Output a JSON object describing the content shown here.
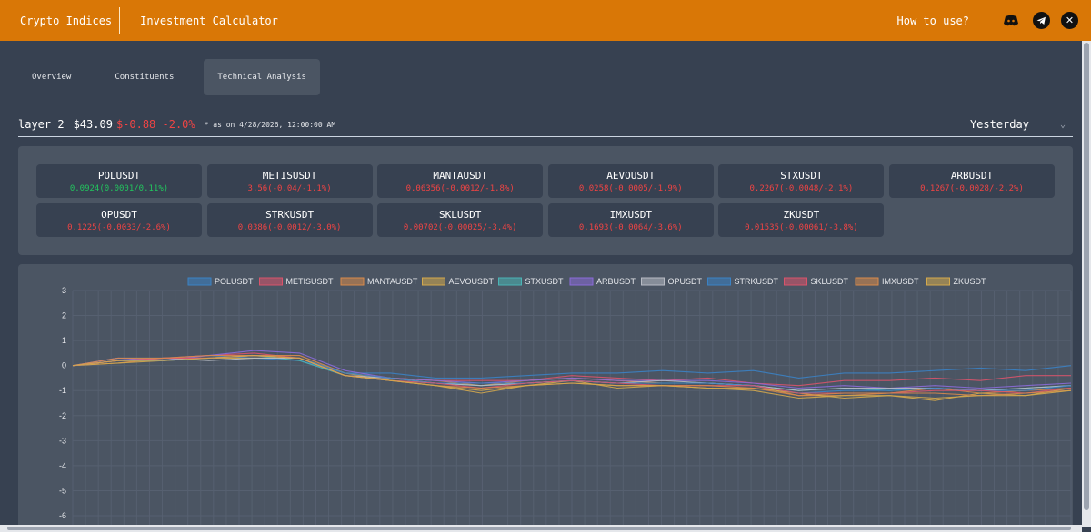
{
  "nav": {
    "brand": "Crypto Indices",
    "calculator": "Investment Calculator",
    "how_to": "How to use?",
    "icons": [
      "discord-icon",
      "telegram-icon",
      "x-icon"
    ]
  },
  "tabs": [
    {
      "label": "Overview",
      "active": false
    },
    {
      "label": "Constituents",
      "active": false
    },
    {
      "label": "Technical Analysis",
      "active": true
    }
  ],
  "index": {
    "name": "layer 2",
    "price": "$43.09",
    "change": "$-0.88 -2.0%",
    "as_of": "* as on 4/28/2026, 12:00:00 AM",
    "period": "Yesterday"
  },
  "colors": {
    "header": "#d97706",
    "positive": "#22c55e",
    "negative": "#ef4444"
  },
  "cards": [
    {
      "symbol": "POLUSDT",
      "change": "0.0924(0.0001/0.11%)",
      "positive": true
    },
    {
      "symbol": "METISUSDT",
      "change": "3.56(-0.04/-1.1%)",
      "positive": false
    },
    {
      "symbol": "MANTAUSDT",
      "change": "0.06356(-0.0012/-1.8%)",
      "positive": false
    },
    {
      "symbol": "AEVOUSDT",
      "change": "0.0258(-0.0005/-1.9%)",
      "positive": false
    },
    {
      "symbol": "STXUSDT",
      "change": "0.2267(-0.0048/-2.1%)",
      "positive": false
    },
    {
      "symbol": "ARBUSDT",
      "change": "0.1267(-0.0028/-2.2%)",
      "positive": false
    },
    {
      "symbol": "OPUSDT",
      "change": "0.1225(-0.0033/-2.6%)",
      "positive": false
    },
    {
      "symbol": "STRKUSDT",
      "change": "0.0386(-0.0012/-3.0%)",
      "positive": false
    },
    {
      "symbol": "SKLUSDT",
      "change": "0.00702(-0.00025/-3.4%)",
      "positive": false
    },
    {
      "symbol": "IMXUSDT",
      "change": "0.1693(-0.0064/-3.6%)",
      "positive": false
    },
    {
      "symbol": "ZKUSDT",
      "change": "0.01535(-0.00061/-3.8%)",
      "positive": false
    }
  ],
  "chart_data": {
    "type": "line",
    "ylim": [
      -6,
      3
    ],
    "yticks": [
      "3",
      "2",
      "1",
      "0",
      "-1",
      "-2",
      "-3",
      "-4",
      "-5",
      "-6"
    ],
    "grid": true,
    "legend_position": "top",
    "series": [
      {
        "name": "POLUSDT",
        "color": "#3b82c4",
        "values": [
          0,
          0.3,
          0.3,
          0.4,
          0.3,
          0.2,
          -0.3,
          -0.3,
          -0.5,
          -0.5,
          -0.4,
          -0.3,
          -0.3,
          -0.2,
          -0.3,
          -0.2,
          -0.5,
          -0.3,
          -0.3,
          -0.2,
          -0.1,
          -0.2,
          0
        ]
      },
      {
        "name": "METISUSDT",
        "color": "#d9546b",
        "values": [
          0,
          0.2,
          0.3,
          0.4,
          0.5,
          0.3,
          -0.4,
          -0.5,
          -0.6,
          -0.6,
          -0.6,
          -0.4,
          -0.5,
          -0.6,
          -0.5,
          -0.7,
          -0.8,
          -0.6,
          -0.6,
          -0.5,
          -0.6,
          -0.4,
          -0.4
        ]
      },
      {
        "name": "MANTAUSDT",
        "color": "#d98a4b",
        "values": [
          0,
          0.1,
          0.3,
          0.3,
          0.4,
          0.4,
          -0.3,
          -0.5,
          -0.6,
          -0.8,
          -0.6,
          -0.5,
          -0.6,
          -0.7,
          -0.7,
          -0.8,
          -1.2,
          -1.2,
          -1.1,
          -0.9,
          -1.1,
          -1.0,
          -0.9
        ]
      },
      {
        "name": "AEVOUSDT",
        "color": "#d4a94c",
        "values": [
          0,
          0.1,
          0.2,
          0.3,
          0.3,
          0.3,
          -0.3,
          -0.6,
          -0.8,
          -1.1,
          -0.8,
          -0.6,
          -0.9,
          -0.8,
          -0.9,
          -0.9,
          -1.1,
          -1.3,
          -1.2,
          -1.4,
          -1.1,
          -1.2,
          -0.9
        ]
      },
      {
        "name": "STXUSDT",
        "color": "#4bb4b5",
        "values": [
          0,
          0.2,
          0.2,
          0.3,
          0.4,
          0.2,
          -0.4,
          -0.6,
          -0.7,
          -0.8,
          -0.7,
          -0.6,
          -0.7,
          -0.7,
          -0.7,
          -0.8,
          -1.0,
          -0.9,
          -1.0,
          -0.9,
          -1.0,
          -0.9,
          -0.8
        ]
      },
      {
        "name": "ARBUSDT",
        "color": "#8b6bd9",
        "values": [
          0,
          0.3,
          0.2,
          0.4,
          0.6,
          0.5,
          -0.2,
          -0.5,
          -0.6,
          -0.7,
          -0.6,
          -0.5,
          -0.6,
          -0.6,
          -0.6,
          -0.7,
          -0.9,
          -0.8,
          -0.9,
          -0.8,
          -0.9,
          -0.8,
          -0.7
        ]
      },
      {
        "name": "OPUSDT",
        "color": "#b8bcc4",
        "values": [
          0,
          0.2,
          0.3,
          0.2,
          0.3,
          0.3,
          -0.4,
          -0.5,
          -0.7,
          -0.8,
          -0.7,
          -0.6,
          -0.7,
          -0.6,
          -0.7,
          -0.8,
          -1.0,
          -0.9,
          -0.9,
          -0.9,
          -1.0,
          -0.9,
          -0.8
        ]
      },
      {
        "name": "STRKUSDT",
        "color": "#3b82c4",
        "values": [
          0,
          0.2,
          0.2,
          0.3,
          0.4,
          0.3,
          -0.3,
          -0.5,
          -0.7,
          -0.7,
          -0.7,
          -0.6,
          -0.7,
          -0.7,
          -0.7,
          -0.8,
          -1.1,
          -1.0,
          -1.0,
          -0.9,
          -1.0,
          -1.0,
          -0.8
        ]
      },
      {
        "name": "SKLUSDT",
        "color": "#d9546b",
        "values": [
          0,
          0.2,
          0.3,
          0.3,
          0.4,
          0.3,
          -0.4,
          -0.6,
          -0.7,
          -0.9,
          -0.7,
          -0.6,
          -0.7,
          -0.8,
          -0.8,
          -0.8,
          -1.1,
          -1.1,
          -1.1,
          -1.0,
          -1.0,
          -1.1,
          -0.9
        ]
      },
      {
        "name": "IMXUSDT",
        "color": "#d98a4b",
        "values": [
          0,
          0.3,
          0.3,
          0.4,
          0.4,
          0.3,
          -0.4,
          -0.6,
          -0.8,
          -0.9,
          -0.8,
          -0.7,
          -0.8,
          -0.8,
          -0.8,
          -0.9,
          -1.2,
          -1.1,
          -1.1,
          -1.1,
          -1.2,
          -1.1,
          -1.0
        ]
      },
      {
        "name": "ZKUSDT",
        "color": "#d4a94c",
        "values": [
          0,
          0.2,
          0.2,
          0.3,
          0.4,
          0.3,
          -0.4,
          -0.6,
          -0.8,
          -1.0,
          -0.8,
          -0.7,
          -0.8,
          -0.8,
          -0.9,
          -1.0,
          -1.3,
          -1.2,
          -1.2,
          -1.3,
          -1.2,
          -1.2,
          -1.0
        ]
      }
    ]
  }
}
